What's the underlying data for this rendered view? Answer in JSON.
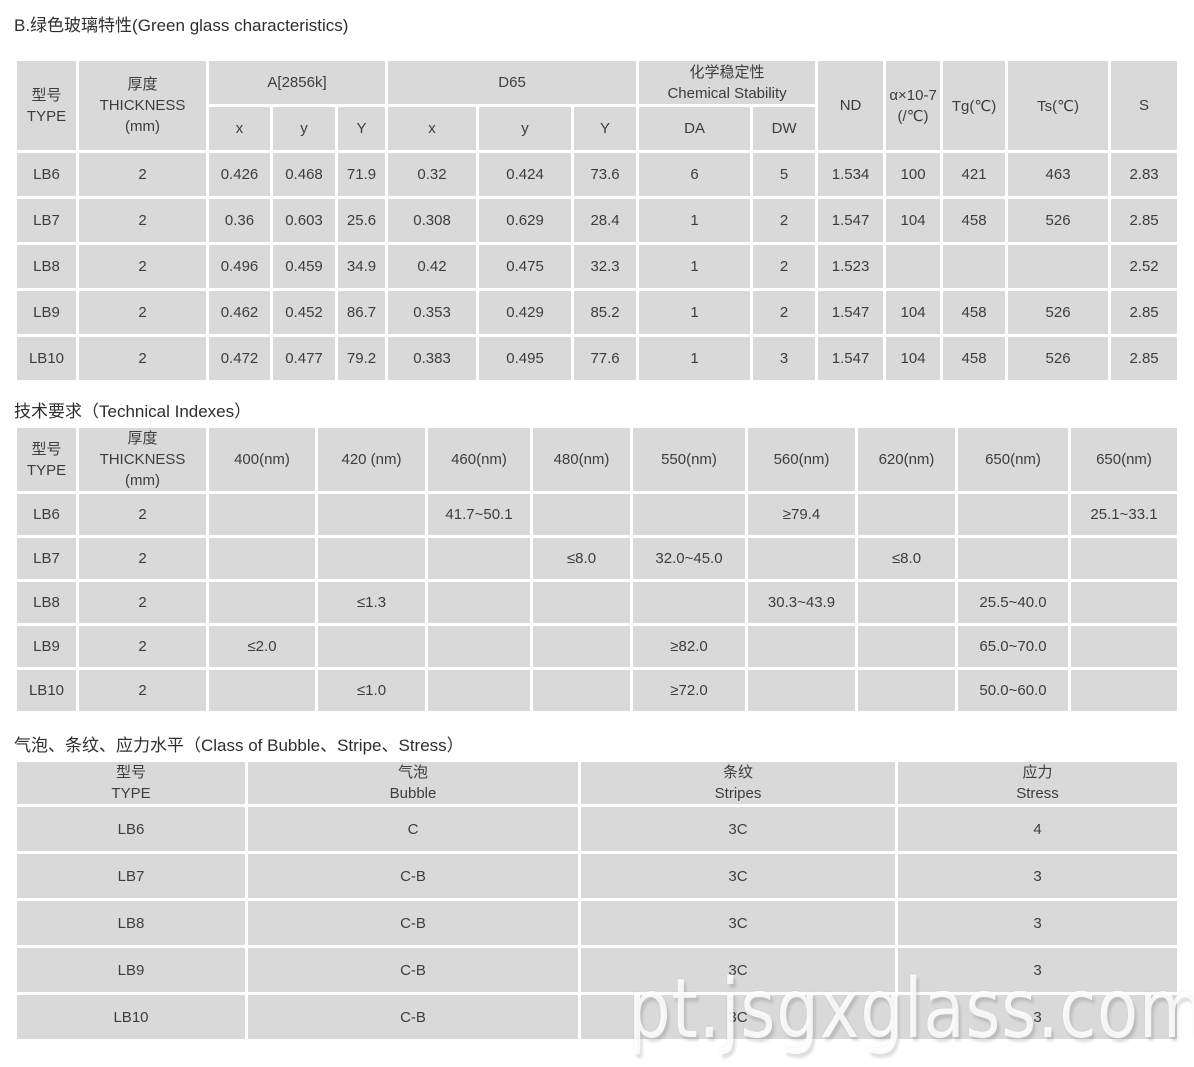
{
  "titles": {
    "section1": "B.绿色玻璃特性(Green glass characteristics)",
    "section2": "技术要求（Technical Indexes）",
    "section3": "气泡、条纹、应力水平（Class of Bubble、Stripe、Stress）"
  },
  "watermark": "pt.jsgxglass.com",
  "colors": {
    "cell_bg": "#d9d9d9",
    "text": "#3d3d3d",
    "page_bg": "#ffffff",
    "watermark": "#ececec"
  },
  "table1": {
    "header": {
      "type_lines": [
        "型号",
        "TYPE"
      ],
      "thickness_lines": [
        "厚度",
        "THICKNESS",
        "(mm)"
      ],
      "a2856k": "A[2856k]",
      "d65": "D65",
      "chem_lines": [
        "化学稳定性",
        "Chemical Stability"
      ],
      "nd": "ND",
      "alpha": "α×10-7(/℃)",
      "tg": "Tg(℃)",
      "ts": "Ts(℃)",
      "s": "S",
      "sub": {
        "x1": "x",
        "y1": "y",
        "Y1": "Y",
        "x2": "x",
        "y2": "y",
        "Y2": "Y",
        "da": "DA",
        "dw": "DW"
      }
    },
    "rows": [
      [
        "LB6",
        "2",
        "0.426",
        "0.468",
        "71.9",
        "0.32",
        "0.424",
        "73.6",
        "6",
        "5",
        "1.534",
        "100",
        "421",
        "463",
        "2.83"
      ],
      [
        "LB7",
        "2",
        "0.36",
        "0.603",
        "25.6",
        "0.308",
        "0.629",
        "28.4",
        "1",
        "2",
        "1.547",
        "104",
        "458",
        "526",
        "2.85"
      ],
      [
        "LB8",
        "2",
        "0.496",
        "0.459",
        "34.9",
        "0.42",
        "0.475",
        "32.3",
        "1",
        "2",
        "1.523",
        "",
        "",
        "",
        "2.52"
      ],
      [
        "LB9",
        "2",
        "0.462",
        "0.452",
        "86.7",
        "0.353",
        "0.429",
        "85.2",
        "1",
        "2",
        "1.547",
        "104",
        "458",
        "526",
        "2.85"
      ],
      [
        "LB10",
        "2",
        "0.472",
        "0.477",
        "79.2",
        "0.383",
        "0.495",
        "77.6",
        "1",
        "3",
        "1.547",
        "104",
        "458",
        "526",
        "2.85"
      ]
    ]
  },
  "table2": {
    "header": {
      "type_lines": [
        "型号",
        "TYPE"
      ],
      "thickness_lines": [
        "厚度",
        "THICKNESS",
        "(mm)"
      ],
      "wavelengths": [
        "400(nm)",
        "420 (nm)",
        "460(nm)",
        "480(nm)",
        "550(nm)",
        "560(nm)",
        "620(nm)",
        "650(nm)",
        "650(nm)"
      ]
    },
    "rows": [
      [
        "LB6",
        "2",
        "",
        "",
        "41.7~50.1",
        "",
        "",
        "≥79.4",
        "",
        "",
        "25.1~33.1"
      ],
      [
        "LB7",
        "2",
        "",
        "",
        "",
        "≤8.0",
        "32.0~45.0",
        "",
        "≤8.0",
        "",
        ""
      ],
      [
        "LB8",
        "2",
        "",
        "≤1.3",
        "",
        "",
        "",
        "30.3~43.9",
        "",
        "25.5~40.0",
        ""
      ],
      [
        "LB9",
        "2",
        "≤2.0",
        "",
        "",
        "",
        "≥82.0",
        "",
        "",
        "65.0~70.0",
        ""
      ],
      [
        "LB10",
        "2",
        "",
        "≤1.0",
        "",
        "",
        "≥72.0",
        "",
        "",
        "50.0~60.0",
        ""
      ]
    ]
  },
  "table3": {
    "header": {
      "type_lines": [
        "型号",
        "TYPE"
      ],
      "bubble_lines": [
        "气泡",
        "Bubble"
      ],
      "stripes_lines": [
        "条纹",
        "Stripes"
      ],
      "stress_lines": [
        "应力",
        "Stress"
      ]
    },
    "rows": [
      [
        "LB6",
        "C",
        "3C",
        "4"
      ],
      [
        "LB7",
        "C-B",
        "3C",
        "3"
      ],
      [
        "LB8",
        "C-B",
        "3C",
        "3"
      ],
      [
        "LB9",
        "C-B",
        "3C",
        "3"
      ],
      [
        "LB10",
        "C-B",
        "3C",
        "3"
      ]
    ]
  }
}
